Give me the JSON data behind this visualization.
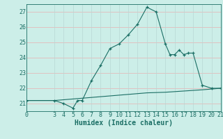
{
  "xlabel": "Humidex (Indice chaleur)",
  "background_color": "#cceee8",
  "grid_color_h": "#e8b0b0",
  "grid_color_v": "#b8d8d4",
  "line_color": "#1a6e64",
  "xlim": [
    0,
    21
  ],
  "ylim": [
    20.5,
    27.5
  ],
  "yticks": [
    21,
    22,
    23,
    24,
    25,
    26,
    27
  ],
  "xticks": [
    0,
    3,
    4,
    5,
    6,
    7,
    8,
    9,
    10,
    11,
    12,
    13,
    14,
    15,
    16,
    17,
    18,
    19,
    20,
    21
  ],
  "x_main": [
    0,
    3,
    4,
    5,
    5.5,
    6,
    7,
    8,
    9,
    10,
    11,
    12,
    13,
    14,
    15,
    15.5,
    16,
    16.5,
    17,
    17.5,
    18,
    19,
    20,
    21
  ],
  "y_main": [
    21.2,
    21.2,
    21.0,
    20.7,
    21.2,
    21.2,
    22.5,
    23.5,
    24.6,
    24.9,
    25.5,
    26.2,
    27.3,
    27.0,
    24.9,
    24.2,
    24.2,
    24.5,
    24.2,
    24.3,
    24.3,
    22.2,
    22.0,
    22.0
  ],
  "x_secondary": [
    0,
    3,
    4,
    5,
    6,
    7,
    8,
    9,
    10,
    11,
    12,
    13,
    14,
    15,
    16,
    17,
    18,
    19,
    20,
    21
  ],
  "y_secondary": [
    21.2,
    21.2,
    21.25,
    21.3,
    21.35,
    21.4,
    21.45,
    21.5,
    21.55,
    21.6,
    21.65,
    21.7,
    21.72,
    21.74,
    21.78,
    21.82,
    21.86,
    21.9,
    21.95,
    22.0
  ],
  "tick_fontsize": 6,
  "axis_fontsize": 7
}
